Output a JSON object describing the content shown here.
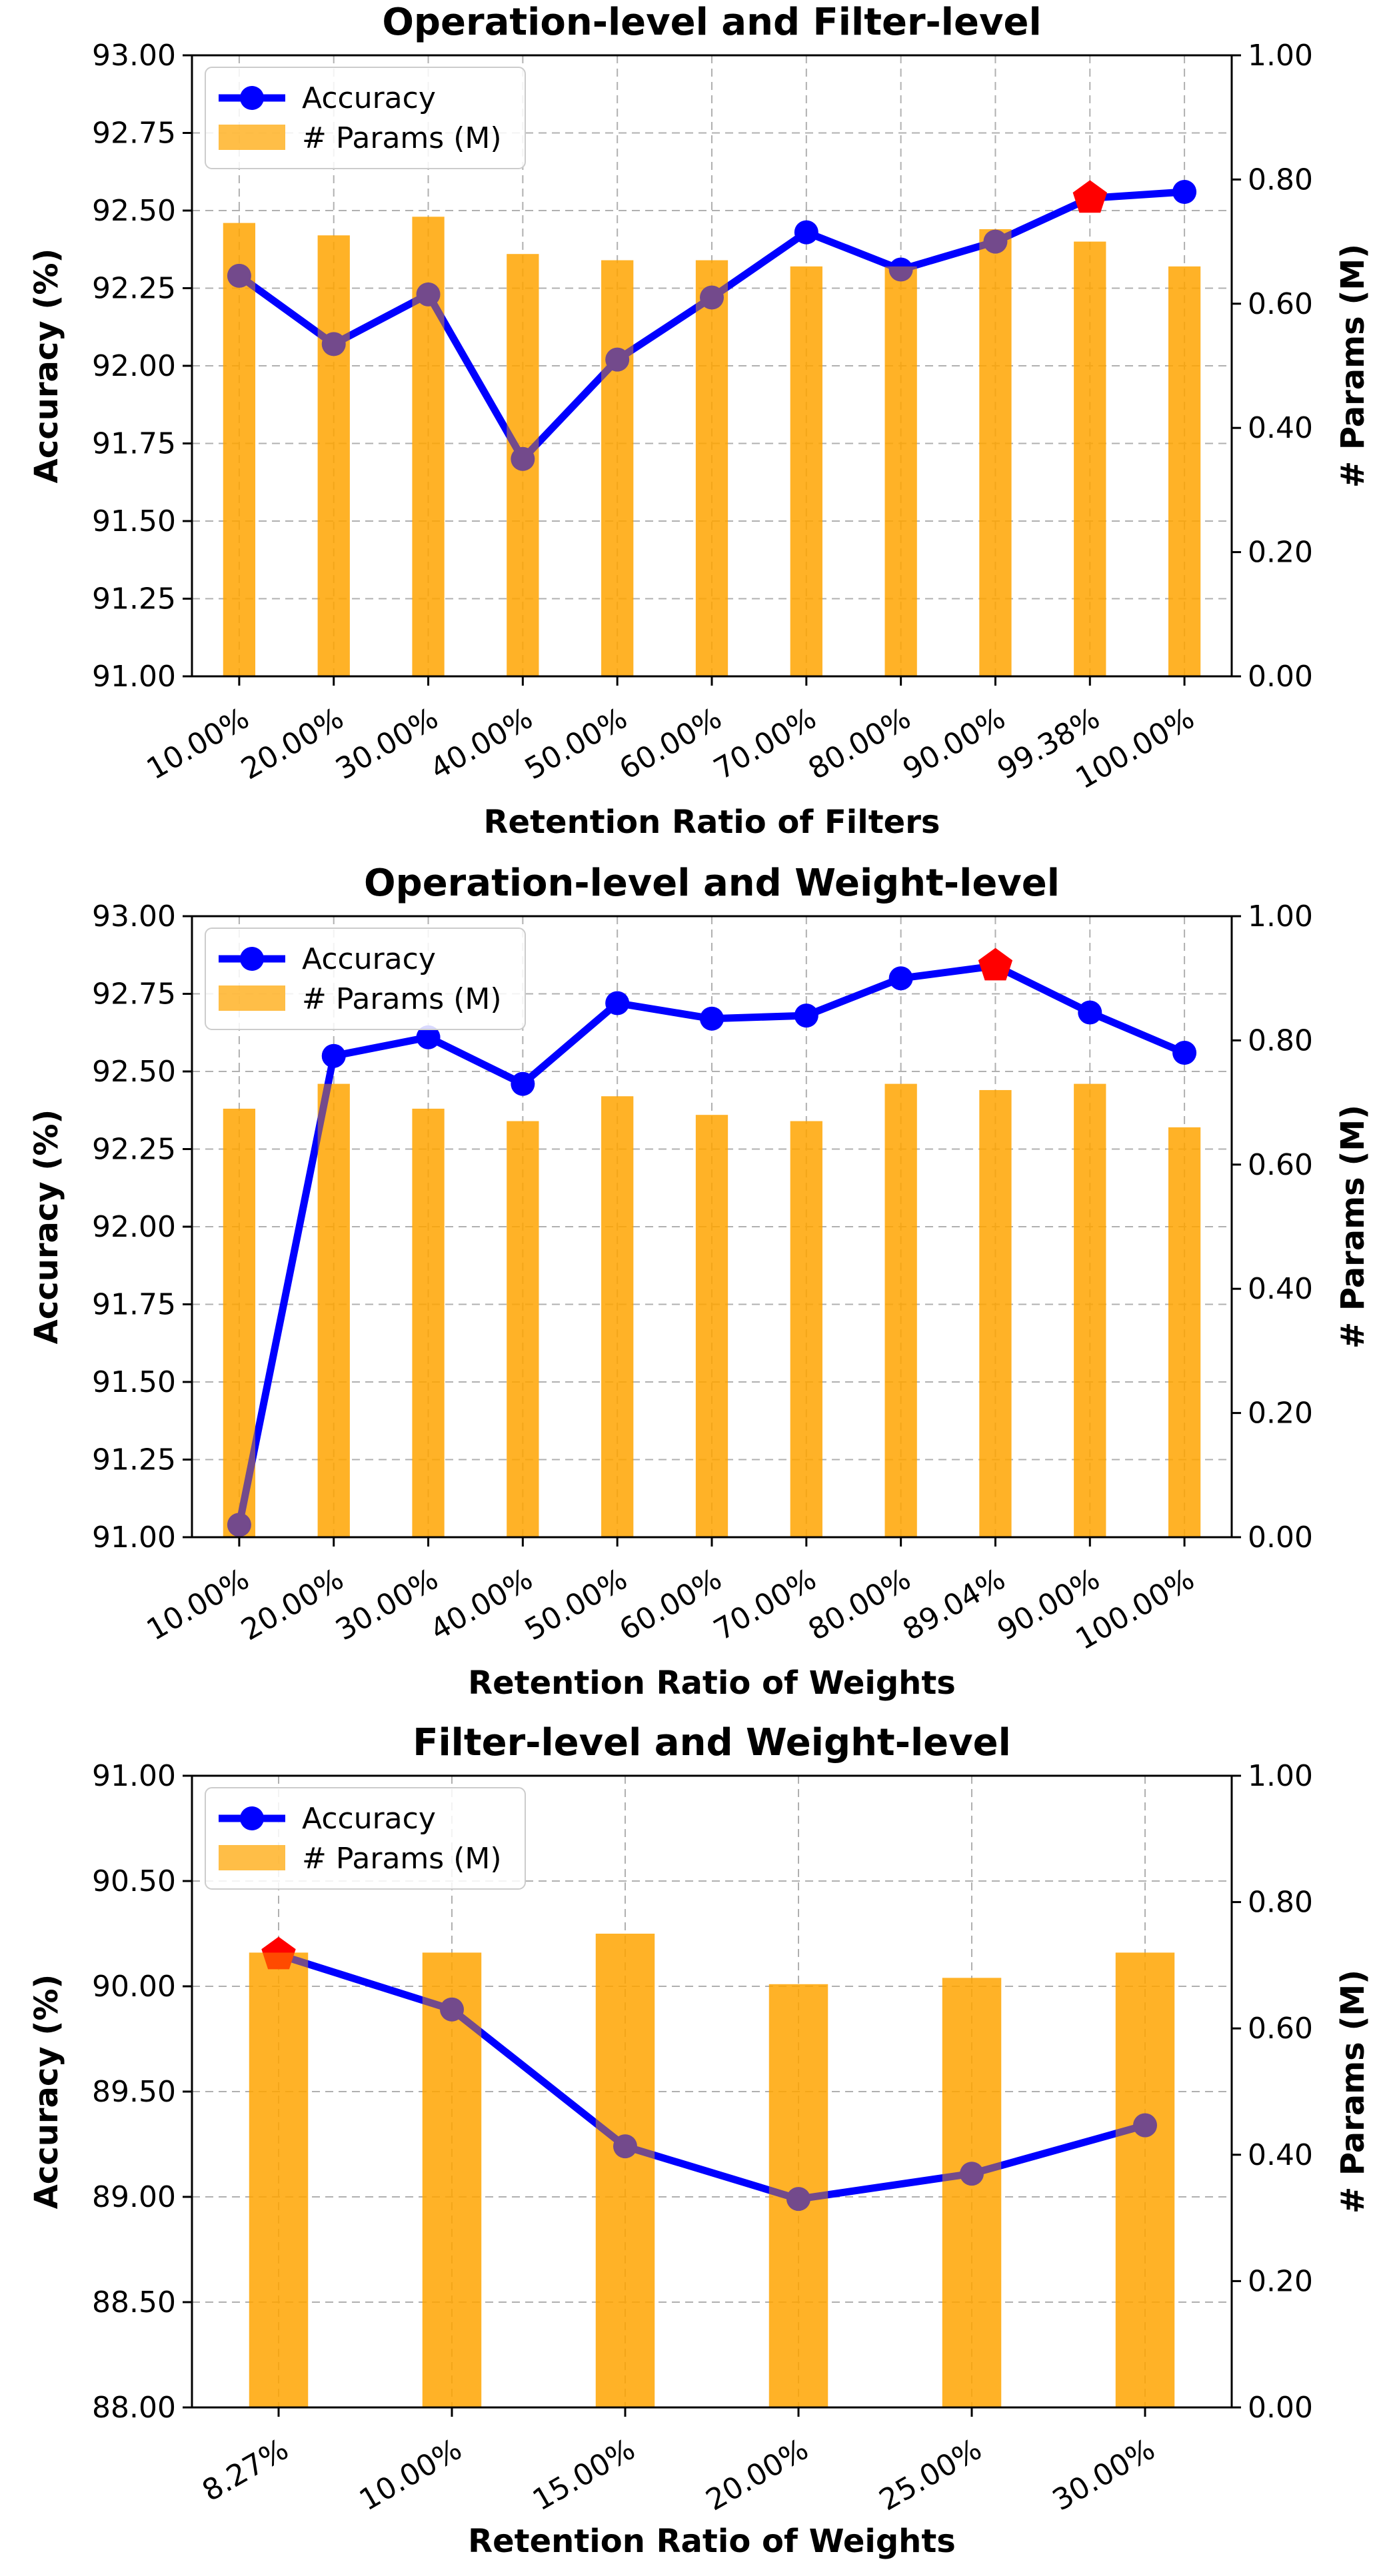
{
  "colors": {
    "accuracy_line": "#0000ff",
    "params_bar": "#ffa500",
    "best_marker": "#ff0000"
  },
  "legend": {
    "accuracy": "Accuracy",
    "params": "# Params (M)"
  },
  "chart_data": [
    {
      "type": "bar+line",
      "title": "Operation-level and Filter-level",
      "xlabel": "Retention Ratio of Filters",
      "ylabel": "Accuracy (%)",
      "y2label": "# Params (M)",
      "categories": [
        "10.00%",
        "20.00%",
        "30.00%",
        "40.00%",
        "50.00%",
        "60.00%",
        "70.00%",
        "80.00%",
        "90.00%",
        "99.38%",
        "100.00%"
      ],
      "ylim": [
        91.0,
        93.0
      ],
      "yticks": [
        "91.00",
        "91.25",
        "91.50",
        "91.75",
        "92.00",
        "92.25",
        "92.50",
        "92.75",
        "93.00"
      ],
      "y2lim": [
        0.0,
        1.0
      ],
      "y2ticks": [
        "0.00",
        "0.20",
        "0.40",
        "0.60",
        "0.80",
        "1.00"
      ],
      "series": [
        {
          "name": "Accuracy",
          "kind": "line",
          "values": [
            92.29,
            92.07,
            92.23,
            91.7,
            92.02,
            92.22,
            92.43,
            92.31,
            92.4,
            92.54,
            92.56
          ]
        },
        {
          "name": "# Params (M)",
          "kind": "bar",
          "values": [
            0.73,
            0.71,
            0.74,
            0.68,
            0.67,
            0.67,
            0.66,
            0.66,
            0.72,
            0.7,
            0.66
          ]
        }
      ],
      "best_index": 9,
      "legend_position": "top-left"
    },
    {
      "type": "bar+line",
      "title": "Operation-level and Weight-level",
      "xlabel": "Retention Ratio of Weights",
      "ylabel": "Accuracy (%)",
      "y2label": "# Params (M)",
      "categories": [
        "10.00%",
        "20.00%",
        "30.00%",
        "40.00%",
        "50.00%",
        "60.00%",
        "70.00%",
        "80.00%",
        "89.04%",
        "90.00%",
        "100.00%"
      ],
      "ylim": [
        91.0,
        93.0
      ],
      "yticks": [
        "91.00",
        "91.25",
        "91.50",
        "91.75",
        "92.00",
        "92.25",
        "92.50",
        "92.75",
        "93.00"
      ],
      "y2lim": [
        0.0,
        1.0
      ],
      "y2ticks": [
        "0.00",
        "0.20",
        "0.40",
        "0.60",
        "0.80",
        "1.00"
      ],
      "series": [
        {
          "name": "Accuracy",
          "kind": "line",
          "values": [
            91.04,
            92.55,
            92.61,
            92.46,
            92.72,
            92.67,
            92.68,
            92.8,
            92.84,
            92.69,
            92.56
          ]
        },
        {
          "name": "# Params (M)",
          "kind": "bar",
          "values": [
            0.69,
            0.73,
            0.69,
            0.67,
            0.71,
            0.68,
            0.67,
            0.73,
            0.72,
            0.73,
            0.66
          ]
        }
      ],
      "best_index": 8,
      "legend_position": "top-left"
    },
    {
      "type": "bar+line",
      "title": "Filter-level and Weight-level",
      "xlabel": "Retention Ratio of Weights",
      "ylabel": "Accuracy (%)",
      "y2label": "# Params (M)",
      "categories": [
        "8.27%",
        "10.00%",
        "15.00%",
        "20.00%",
        "25.00%",
        "30.00%"
      ],
      "ylim": [
        88.0,
        91.0
      ],
      "yticks": [
        "88.00",
        "88.50",
        "89.00",
        "89.50",
        "90.00",
        "90.50",
        "91.00"
      ],
      "y2lim": [
        0.0,
        1.0
      ],
      "y2ticks": [
        "0.00",
        "0.20",
        "0.40",
        "0.60",
        "0.80",
        "1.00"
      ],
      "series": [
        {
          "name": "Accuracy",
          "kind": "line",
          "values": [
            90.15,
            89.89,
            89.24,
            88.99,
            89.11,
            89.34
          ]
        },
        {
          "name": "# Params (M)",
          "kind": "bar",
          "values": [
            0.72,
            0.72,
            0.75,
            0.67,
            0.68,
            0.72
          ]
        }
      ],
      "best_index": 0,
      "legend_position": "top-left"
    }
  ]
}
